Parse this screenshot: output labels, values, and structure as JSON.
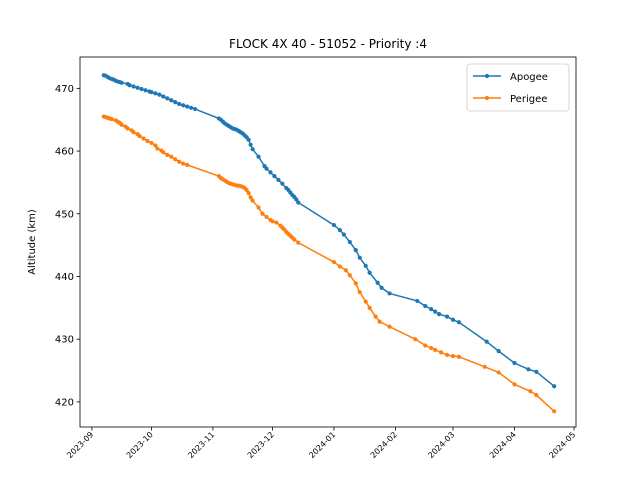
{
  "chart_data": {
    "type": "line",
    "title": "FLOCK 4X 40 - 51052 - Priority :4",
    "xlabel": "",
    "ylabel": "Altitude (km)",
    "xlim": [
      "2023-08-26",
      "2024-05-02"
    ],
    "ylim": [
      416,
      475
    ],
    "x_ticks": [
      "2023-09",
      "2023-10",
      "2023-11",
      "2023-12",
      "2024-01",
      "2024-02",
      "2024-03",
      "2024-04",
      "2024-05"
    ],
    "y_ticks": [
      420,
      430,
      440,
      450,
      460,
      470
    ],
    "legend_position": "top-right",
    "grid": false,
    "series": [
      {
        "name": "Apogee",
        "color": "#1f77b4",
        "points": [
          [
            "2023-09-07",
            472.1
          ],
          [
            "2023-09-08",
            472.0
          ],
          [
            "2023-09-09",
            471.8
          ],
          [
            "2023-09-10",
            471.6
          ],
          [
            "2023-09-11",
            471.5
          ],
          [
            "2023-09-12",
            471.4
          ],
          [
            "2023-09-13",
            471.2
          ],
          [
            "2023-09-14",
            471.1
          ],
          [
            "2023-09-15",
            471.0
          ],
          [
            "2023-09-16",
            470.9
          ],
          [
            "2023-09-19",
            470.7
          ],
          [
            "2023-09-20",
            470.5
          ],
          [
            "2023-09-22",
            470.3
          ],
          [
            "2023-09-24",
            470.1
          ],
          [
            "2023-09-26",
            469.9
          ],
          [
            "2023-09-28",
            469.7
          ],
          [
            "2023-09-30",
            469.5
          ],
          [
            "2023-10-01",
            469.4
          ],
          [
            "2023-10-03",
            469.2
          ],
          [
            "2023-10-05",
            469.0
          ],
          [
            "2023-10-07",
            468.7
          ],
          [
            "2023-10-09",
            468.4
          ],
          [
            "2023-10-11",
            468.1
          ],
          [
            "2023-10-13",
            467.8
          ],
          [
            "2023-10-15",
            467.5
          ],
          [
            "2023-10-17",
            467.3
          ],
          [
            "2023-10-19",
            467.1
          ],
          [
            "2023-10-21",
            466.9
          ],
          [
            "2023-10-23",
            466.7
          ],
          [
            "2023-11-04",
            465.2
          ],
          [
            "2023-11-05",
            465.0
          ],
          [
            "2023-11-06",
            464.7
          ],
          [
            "2023-11-07",
            464.4
          ],
          [
            "2023-11-08",
            464.2
          ],
          [
            "2023-11-09",
            464.0
          ],
          [
            "2023-11-10",
            463.8
          ],
          [
            "2023-11-11",
            463.6
          ],
          [
            "2023-11-12",
            463.5
          ],
          [
            "2023-11-13",
            463.4
          ],
          [
            "2023-11-14",
            463.2
          ],
          [
            "2023-11-15",
            463.0
          ],
          [
            "2023-11-16",
            462.8
          ],
          [
            "2023-11-17",
            462.5
          ],
          [
            "2023-11-18",
            462.2
          ],
          [
            "2023-11-19",
            461.8
          ],
          [
            "2023-11-20",
            461.0
          ],
          [
            "2023-11-21",
            460.3
          ],
          [
            "2023-11-24",
            459.1
          ],
          [
            "2023-11-27",
            457.6
          ],
          [
            "2023-11-28",
            457.2
          ],
          [
            "2023-11-30",
            456.6
          ],
          [
            "2023-12-02",
            456.0
          ],
          [
            "2023-12-04",
            455.4
          ],
          [
            "2023-12-06",
            454.8
          ],
          [
            "2023-12-08",
            454.1
          ],
          [
            "2023-12-09",
            453.8
          ],
          [
            "2023-12-10",
            453.4
          ],
          [
            "2023-12-11",
            453.0
          ],
          [
            "2023-12-12",
            452.7
          ],
          [
            "2023-12-13",
            452.3
          ],
          [
            "2023-12-14",
            451.8
          ],
          [
            "2024-01-01",
            448.2
          ],
          [
            "2024-01-04",
            447.4
          ],
          [
            "2024-01-06",
            446.7
          ],
          [
            "2024-01-09",
            445.5
          ],
          [
            "2024-01-12",
            444.2
          ],
          [
            "2024-01-14",
            443.0
          ],
          [
            "2024-01-17",
            441.7
          ],
          [
            "2024-01-19",
            440.6
          ],
          [
            "2024-01-23",
            439.0
          ],
          [
            "2024-01-25",
            438.2
          ],
          [
            "2024-01-29",
            437.3
          ],
          [
            "2024-02-12",
            436.1
          ],
          [
            "2024-02-16",
            435.3
          ],
          [
            "2024-02-19",
            434.8
          ],
          [
            "2024-02-21",
            434.4
          ],
          [
            "2024-02-23",
            434.0
          ],
          [
            "2024-02-27",
            433.6
          ],
          [
            "2024-03-01",
            433.1
          ],
          [
            "2024-03-04",
            432.7
          ],
          [
            "2024-03-18",
            429.6
          ],
          [
            "2024-03-24",
            428.1
          ],
          [
            "2024-04-01",
            426.2
          ],
          [
            "2024-04-08",
            425.2
          ],
          [
            "2024-04-12",
            424.8
          ],
          [
            "2024-04-21",
            422.5
          ]
        ]
      },
      {
        "name": "Perigee",
        "color": "#ff7f0e",
        "points": [
          [
            "2023-09-07",
            465.5
          ],
          [
            "2023-09-08",
            465.4
          ],
          [
            "2023-09-09",
            465.3
          ],
          [
            "2023-09-10",
            465.2
          ],
          [
            "2023-09-11",
            465.1
          ],
          [
            "2023-09-13",
            464.9
          ],
          [
            "2023-09-14",
            464.7
          ],
          [
            "2023-09-15",
            464.5
          ],
          [
            "2023-09-16",
            464.2
          ],
          [
            "2023-09-18",
            463.9
          ],
          [
            "2023-09-19",
            463.6
          ],
          [
            "2023-09-21",
            463.3
          ],
          [
            "2023-09-22",
            463.0
          ],
          [
            "2023-09-24",
            462.7
          ],
          [
            "2023-09-25",
            462.4
          ],
          [
            "2023-09-27",
            462.0
          ],
          [
            "2023-09-29",
            461.6
          ],
          [
            "2023-10-01",
            461.3
          ],
          [
            "2023-10-03",
            460.9
          ],
          [
            "2023-10-04",
            460.4
          ],
          [
            "2023-10-06",
            460.1
          ],
          [
            "2023-10-07",
            459.8
          ],
          [
            "2023-10-09",
            459.4
          ],
          [
            "2023-10-11",
            459.1
          ],
          [
            "2023-10-13",
            458.7
          ],
          [
            "2023-10-15",
            458.3
          ],
          [
            "2023-10-17",
            458.0
          ],
          [
            "2023-10-19",
            457.8
          ],
          [
            "2023-11-04",
            456.0
          ],
          [
            "2023-11-05",
            455.7
          ],
          [
            "2023-11-06",
            455.5
          ],
          [
            "2023-11-07",
            455.3
          ],
          [
            "2023-11-08",
            455.1
          ],
          [
            "2023-11-09",
            454.9
          ],
          [
            "2023-11-10",
            454.8
          ],
          [
            "2023-11-11",
            454.7
          ],
          [
            "2023-11-12",
            454.6
          ],
          [
            "2023-11-13",
            454.5
          ],
          [
            "2023-11-14",
            454.5
          ],
          [
            "2023-11-15",
            454.4
          ],
          [
            "2023-11-16",
            454.3
          ],
          [
            "2023-11-17",
            454.1
          ],
          [
            "2023-11-18",
            453.8
          ],
          [
            "2023-11-19",
            453.3
          ],
          [
            "2023-11-20",
            452.6
          ],
          [
            "2023-11-21",
            452.1
          ],
          [
            "2023-11-24",
            451.0
          ],
          [
            "2023-11-26",
            450.0
          ],
          [
            "2023-11-28",
            449.5
          ],
          [
            "2023-11-30",
            449.0
          ],
          [
            "2023-12-01",
            448.8
          ],
          [
            "2023-12-03",
            448.6
          ],
          [
            "2023-12-05",
            448.1
          ],
          [
            "2023-12-06",
            447.8
          ],
          [
            "2023-12-07",
            447.5
          ],
          [
            "2023-12-08",
            447.1
          ],
          [
            "2023-12-09",
            446.8
          ],
          [
            "2023-12-10",
            446.5
          ],
          [
            "2023-12-11",
            446.2
          ],
          [
            "2023-12-12",
            445.9
          ],
          [
            "2023-12-14",
            445.4
          ],
          [
            "2024-01-01",
            442.3
          ],
          [
            "2024-01-04",
            441.6
          ],
          [
            "2024-01-07",
            441.0
          ],
          [
            "2024-01-09",
            440.2
          ],
          [
            "2024-01-12",
            438.9
          ],
          [
            "2024-01-14",
            437.5
          ],
          [
            "2024-01-17",
            436.0
          ],
          [
            "2024-01-19",
            435.0
          ],
          [
            "2024-01-22",
            433.6
          ],
          [
            "2024-01-24",
            432.8
          ],
          [
            "2024-01-29",
            432.0
          ],
          [
            "2024-02-11",
            430.0
          ],
          [
            "2024-02-16",
            429.0
          ],
          [
            "2024-02-19",
            428.6
          ],
          [
            "2024-02-21",
            428.3
          ],
          [
            "2024-02-24",
            427.9
          ],
          [
            "2024-02-27",
            427.5
          ],
          [
            "2024-03-01",
            427.3
          ],
          [
            "2024-03-04",
            427.2
          ],
          [
            "2024-03-17",
            425.6
          ],
          [
            "2024-03-24",
            424.7
          ],
          [
            "2024-04-01",
            422.8
          ],
          [
            "2024-04-09",
            421.7
          ],
          [
            "2024-04-12",
            421.1
          ],
          [
            "2024-04-21",
            418.5
          ]
        ]
      }
    ]
  }
}
